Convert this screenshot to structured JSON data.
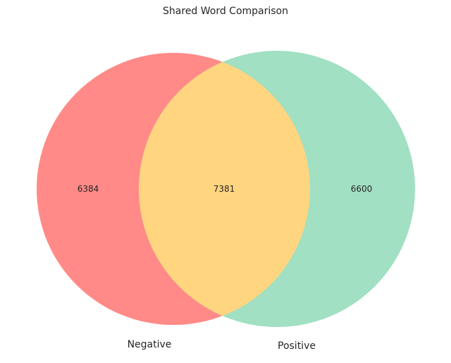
{
  "chart_data": {
    "type": "venn",
    "title": "Shared Word Comparison",
    "sets": [
      {
        "name": "Negative",
        "only": 6384,
        "color": "#ff8a87"
      },
      {
        "name": "Positive",
        "only": 6600,
        "color": "#a1e0c2"
      }
    ],
    "intersection": {
      "value": 7381,
      "color": "#ffd580"
    }
  }
}
